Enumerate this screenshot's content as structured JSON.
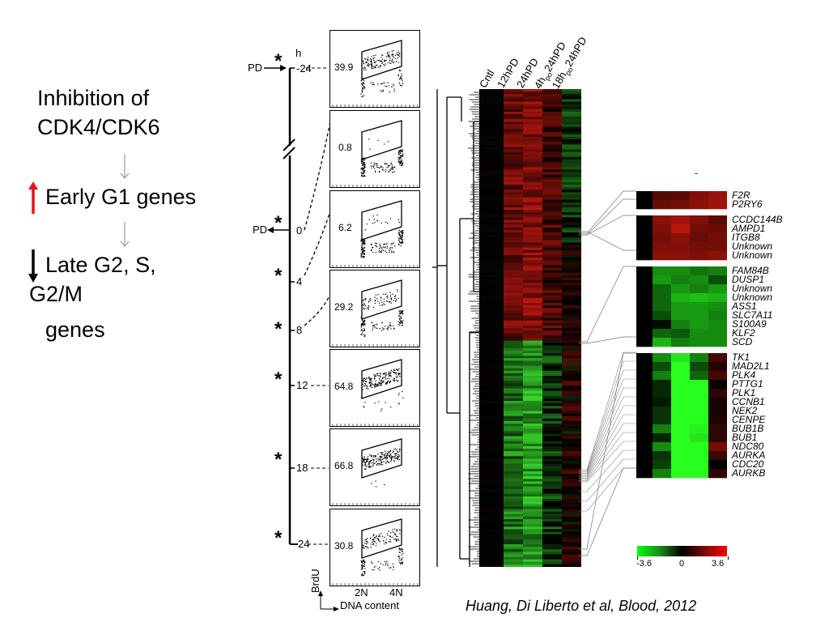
{
  "left_panel": {
    "line1": "Inhibition of",
    "line2": "CDK4/CDK6",
    "step2": "Early G1 genes",
    "step3_line1": "Late G2, S,",
    "step3_line2": "G2/M",
    "step3_line3": "genes",
    "up_arrow_color": "#e8141b",
    "down_arrow_color": "#000000",
    "connector_color": "#999999"
  },
  "timeline": {
    "unit": "h",
    "pd_label": "PD",
    "points": [
      {
        "label": "-24",
        "starred": true,
        "pd": "in"
      },
      {
        "label": "0",
        "starred": true,
        "pd": "out"
      },
      {
        "label": "4",
        "starred": true,
        "pd": ""
      },
      {
        "label": "8",
        "starred": true,
        "pd": ""
      },
      {
        "label": "12",
        "starred": true,
        "pd": ""
      },
      {
        "label": "18",
        "starred": true,
        "pd": ""
      },
      {
        "label": "24",
        "starred": true,
        "pd": ""
      }
    ]
  },
  "flow_plots": {
    "values": [
      "39.9",
      "0.8",
      "6.2",
      "29.2",
      "64.8",
      "66.8",
      "30.8"
    ],
    "y_axis_label": "BrdU",
    "x_axis_label": "DNA content",
    "x_ticks": [
      "2N",
      "4N"
    ]
  },
  "heatmap": {
    "columns": [
      {
        "main": "Cntl",
        "sub": "",
        "suffix": ""
      },
      {
        "main": "12hPD",
        "sub": "",
        "suffix": ""
      },
      {
        "main": "24hPD",
        "sub": "",
        "suffix": ""
      },
      {
        "main": "4h",
        "sub": "po",
        "suffix": "24hPD"
      },
      {
        "main": "18h",
        "sub": "po",
        "suffix": "24hPD"
      }
    ]
  },
  "zoom_heatmap": {
    "groups": [
      {
        "genes": [
          "F2R",
          "P2RY6"
        ]
      },
      {
        "genes": [
          "CCDC144B",
          "AMPD1",
          "ITGB8",
          "Unknown",
          "Unknown"
        ]
      },
      {
        "genes": [
          "FAM84B",
          "DUSP1",
          "Unknown",
          "Unknown",
          "ASS1",
          "SLC7A11",
          "S100A9",
          "KLF2",
          "SCD"
        ]
      },
      {
        "genes": [
          "TK1",
          "MAD2L1",
          "PLK4",
          "PTTG1",
          "PLK1",
          "CCNB1",
          "NEK2",
          "CENPE",
          "BUB1B",
          "BUB1",
          "NDC80",
          "AURKA",
          "CDC20",
          "AURKB"
        ]
      }
    ],
    "colorbar": {
      "min_label": "-3.6",
      "mid_label": "0",
      "max_label": "3.6",
      "low_color": "#00ff00",
      "mid_color": "#000000",
      "high_color": "#ff0000"
    }
  },
  "citation": "Huang, Di Liberto et al, Blood, 2012"
}
